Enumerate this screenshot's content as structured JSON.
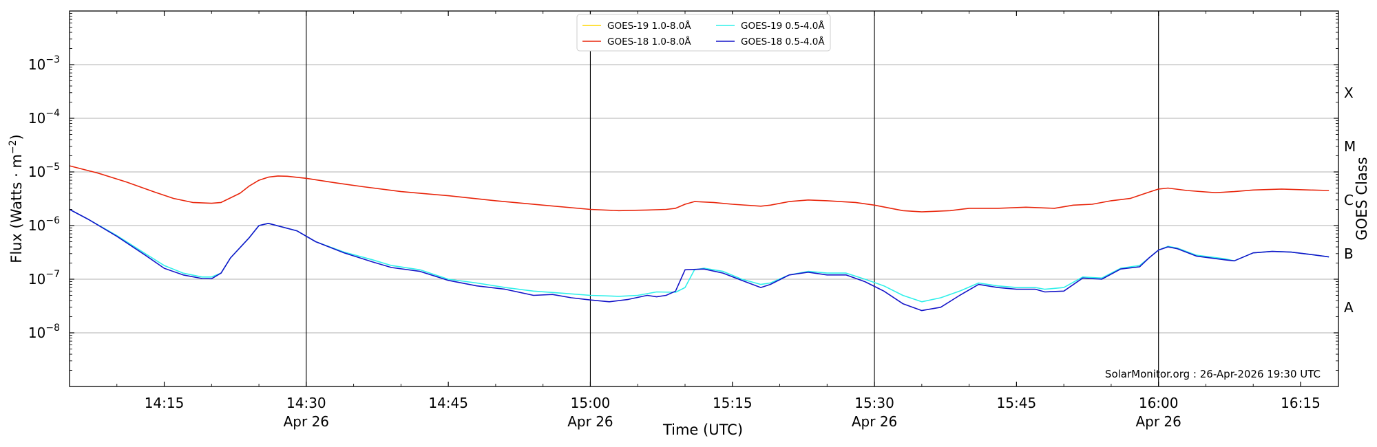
{
  "chart_data": {
    "type": "line",
    "xlabel": "Time (UTC)",
    "ylabel_main": "Flux (Watts · m",
    "ylabel_sup": "−2",
    "ylabel_close": ")",
    "ylabel_right": "GOES Class",
    "credit": "SolarMonitor.org : 26-Apr-2026 19:30 UTC",
    "x_range": [
      "14:05",
      "16:19"
    ],
    "y_range": [
      1e-09,
      0.01
    ],
    "y_scale": "log",
    "grid": "horizontal",
    "legend_position": "top-center",
    "y_ticks": [
      {
        "value": 1e-08,
        "base": "10",
        "exp": "−8"
      },
      {
        "value": 1e-07,
        "base": "10",
        "exp": "−7"
      },
      {
        "value": 1e-06,
        "base": "10",
        "exp": "−6"
      },
      {
        "value": 1e-05,
        "base": "10",
        "exp": "−5"
      },
      {
        "value": 0.0001,
        "base": "10",
        "exp": "−4"
      },
      {
        "value": 0.001,
        "base": "10",
        "exp": "−3"
      }
    ],
    "x_ticks": [
      {
        "time": "14:15",
        "label": "14:15",
        "date": ""
      },
      {
        "time": "14:30",
        "label": "14:30",
        "date": "Apr 26"
      },
      {
        "time": "14:45",
        "label": "14:45",
        "date": ""
      },
      {
        "time": "15:00",
        "label": "15:00",
        "date": "Apr 26"
      },
      {
        "time": "15:15",
        "label": "15:15",
        "date": ""
      },
      {
        "time": "15:30",
        "label": "15:30",
        "date": "Apr 26"
      },
      {
        "time": "15:45",
        "label": "15:45",
        "date": ""
      },
      {
        "time": "16:00",
        "label": "16:00",
        "date": "Apr 26"
      },
      {
        "time": "16:15",
        "label": "16:15",
        "date": ""
      }
    ],
    "day_markers": [
      "14:30",
      "15:00",
      "15:30",
      "16:00"
    ],
    "class_labels": [
      {
        "label": "X",
        "value": 0.0003
      },
      {
        "label": "M",
        "value": 3e-05
      },
      {
        "label": "C",
        "value": 3e-06
      },
      {
        "label": "B",
        "value": 3e-07
      },
      {
        "label": "A",
        "value": 3e-08
      }
    ],
    "series": [
      {
        "name": "GOES-19 1.0-8.0Å",
        "color": "#ffd700",
        "points": []
      },
      {
        "name": "GOES-18 1.0-8.0Å",
        "color": "#e8250b",
        "points": [
          [
            "14:05",
            1.3e-05
          ],
          [
            "14:08",
            9.5e-06
          ],
          [
            "14:11",
            6.5e-06
          ],
          [
            "14:14",
            4.2e-06
          ],
          [
            "14:16",
            3.2e-06
          ],
          [
            "14:18",
            2.7e-06
          ],
          [
            "14:20",
            2.6e-06
          ],
          [
            "14:21",
            2.7e-06
          ],
          [
            "14:23",
            4e-06
          ],
          [
            "14:24",
            5.5e-06
          ],
          [
            "14:25",
            7e-06
          ],
          [
            "14:26",
            8e-06
          ],
          [
            "14:27",
            8.4e-06
          ],
          [
            "14:28",
            8.3e-06
          ],
          [
            "14:30",
            7.6e-06
          ],
          [
            "14:33",
            6.3e-06
          ],
          [
            "14:36",
            5.3e-06
          ],
          [
            "14:40",
            4.3e-06
          ],
          [
            "14:45",
            3.6e-06
          ],
          [
            "14:50",
            2.9e-06
          ],
          [
            "14:55",
            2.4e-06
          ],
          [
            "15:00",
            2e-06
          ],
          [
            "15:03",
            1.9e-06
          ],
          [
            "15:06",
            1.95e-06
          ],
          [
            "15:08",
            2e-06
          ],
          [
            "15:09",
            2.1e-06
          ],
          [
            "15:10",
            2.5e-06
          ],
          [
            "15:11",
            2.8e-06
          ],
          [
            "15:13",
            2.7e-06
          ],
          [
            "15:15",
            2.5e-06
          ],
          [
            "15:18",
            2.3e-06
          ],
          [
            "15:19",
            2.4e-06
          ],
          [
            "15:21",
            2.8e-06
          ],
          [
            "15:23",
            3e-06
          ],
          [
            "15:25",
            2.9e-06
          ],
          [
            "15:28",
            2.7e-06
          ],
          [
            "15:30",
            2.4e-06
          ],
          [
            "15:33",
            1.9e-06
          ],
          [
            "15:35",
            1.8e-06
          ],
          [
            "15:38",
            1.9e-06
          ],
          [
            "15:40",
            2.1e-06
          ],
          [
            "15:43",
            2.1e-06
          ],
          [
            "15:46",
            2.2e-06
          ],
          [
            "15:49",
            2.1e-06
          ],
          [
            "15:51",
            2.4e-06
          ],
          [
            "15:53",
            2.5e-06
          ],
          [
            "15:55",
            2.9e-06
          ],
          [
            "15:57",
            3.2e-06
          ],
          [
            "15:59",
            4.2e-06
          ],
          [
            "16:00",
            4.8e-06
          ],
          [
            "16:01",
            5e-06
          ],
          [
            "16:03",
            4.5e-06
          ],
          [
            "16:06",
            4.1e-06
          ],
          [
            "16:08",
            4.3e-06
          ],
          [
            "16:10",
            4.6e-06
          ],
          [
            "16:13",
            4.8e-06
          ],
          [
            "16:16",
            4.6e-06
          ],
          [
            "16:18",
            4.5e-06
          ]
        ]
      },
      {
        "name": "GOES-19 0.5-4.0Å",
        "color": "#2ff0ea",
        "points": [
          [
            "14:05",
            2e-06
          ],
          [
            "14:07",
            1.3e-06
          ],
          [
            "14:10",
            6.5e-07
          ],
          [
            "14:13",
            3e-07
          ],
          [
            "14:15",
            1.8e-07
          ],
          [
            "14:17",
            1.3e-07
          ],
          [
            "14:19",
            1.1e-07
          ],
          [
            "14:20",
            1.1e-07
          ],
          [
            "14:21",
            1.3e-07
          ],
          [
            "14:22",
            2.5e-07
          ],
          [
            "14:24",
            6e-07
          ],
          [
            "14:25",
            1e-06
          ],
          [
            "14:26",
            1.1e-06
          ],
          [
            "14:29",
            8e-07
          ],
          [
            "14:31",
            5e-07
          ],
          [
            "14:34",
            3.2e-07
          ],
          [
            "14:37",
            2.3e-07
          ],
          [
            "14:39",
            1.8e-07
          ],
          [
            "14:42",
            1.5e-07
          ],
          [
            "14:45",
            1e-07
          ],
          [
            "14:48",
            8.5e-08
          ],
          [
            "14:51",
            7e-08
          ],
          [
            "14:54",
            6e-08
          ],
          [
            "14:57",
            5.5e-08
          ],
          [
            "15:00",
            5e-08
          ],
          [
            "15:03",
            4.8e-08
          ],
          [
            "15:05",
            5e-08
          ],
          [
            "15:07",
            5.8e-08
          ],
          [
            "15:09",
            5.7e-08
          ],
          [
            "15:10",
            7e-08
          ],
          [
            "15:11",
            1.5e-07
          ],
          [
            "15:12",
            1.6e-07
          ],
          [
            "15:14",
            1.4e-07
          ],
          [
            "15:16",
            1e-07
          ],
          [
            "15:18",
            8e-08
          ],
          [
            "15:19",
            8.5e-08
          ],
          [
            "15:21",
            1.2e-07
          ],
          [
            "15:23",
            1.4e-07
          ],
          [
            "15:25",
            1.3e-07
          ],
          [
            "15:27",
            1.3e-07
          ],
          [
            "15:29",
            1e-07
          ],
          [
            "15:31",
            7.5e-08
          ],
          [
            "15:33",
            5e-08
          ],
          [
            "15:35",
            3.8e-08
          ],
          [
            "15:37",
            4.5e-08
          ],
          [
            "15:39",
            6e-08
          ],
          [
            "15:41",
            8.5e-08
          ],
          [
            "15:43",
            7.5e-08
          ],
          [
            "15:45",
            7e-08
          ],
          [
            "15:47",
            7e-08
          ],
          [
            "15:48",
            6.5e-08
          ],
          [
            "15:50",
            7e-08
          ],
          [
            "15:52",
            1.1e-07
          ],
          [
            "15:54",
            1.05e-07
          ],
          [
            "15:56",
            1.6e-07
          ],
          [
            "15:58",
            1.8e-07
          ],
          [
            "15:59",
            2.5e-07
          ],
          [
            "16:00",
            3.5e-07
          ],
          [
            "16:01",
            4.1e-07
          ],
          [
            "16:02",
            3.8e-07
          ],
          [
            "16:04",
            2.8e-07
          ],
          [
            "16:07",
            2.4e-07
          ],
          [
            "16:08",
            2.2e-07
          ],
          [
            "16:10",
            3.1e-07
          ],
          [
            "16:12",
            3.3e-07
          ],
          [
            "16:14",
            3.2e-07
          ],
          [
            "16:16",
            2.9e-07
          ],
          [
            "16:18",
            2.6e-07
          ]
        ]
      },
      {
        "name": "GOES-18 0.5-4.0Å",
        "color": "#1414c8",
        "points": [
          [
            "14:05",
            2e-06
          ],
          [
            "14:07",
            1.3e-06
          ],
          [
            "14:10",
            6.3e-07
          ],
          [
            "14:13",
            2.8e-07
          ],
          [
            "14:15",
            1.6e-07
          ],
          [
            "14:17",
            1.2e-07
          ],
          [
            "14:19",
            1.03e-07
          ],
          [
            "14:20",
            1.02e-07
          ],
          [
            "14:21",
            1.3e-07
          ],
          [
            "14:22",
            2.5e-07
          ],
          [
            "14:24",
            6e-07
          ],
          [
            "14:25",
            1e-06
          ],
          [
            "14:26",
            1.1e-06
          ],
          [
            "14:29",
            8e-07
          ],
          [
            "14:31",
            5e-07
          ],
          [
            "14:34",
            3.1e-07
          ],
          [
            "14:37",
            2.1e-07
          ],
          [
            "14:39",
            1.65e-07
          ],
          [
            "14:42",
            1.4e-07
          ],
          [
            "14:45",
            9.5e-08
          ],
          [
            "14:48",
            7.5e-08
          ],
          [
            "14:51",
            6.5e-08
          ],
          [
            "14:54",
            5e-08
          ],
          [
            "14:56",
            5.2e-08
          ],
          [
            "14:58",
            4.5e-08
          ],
          [
            "15:00",
            4.1e-08
          ],
          [
            "15:02",
            3.8e-08
          ],
          [
            "15:04",
            4.2e-08
          ],
          [
            "15:06",
            5e-08
          ],
          [
            "15:07",
            4.7e-08
          ],
          [
            "15:08",
            5e-08
          ],
          [
            "15:09",
            6e-08
          ],
          [
            "15:10",
            1.5e-07
          ],
          [
            "15:12",
            1.55e-07
          ],
          [
            "15:14",
            1.3e-07
          ],
          [
            "15:16",
            9.5e-08
          ],
          [
            "15:18",
            7e-08
          ],
          [
            "15:19",
            8e-08
          ],
          [
            "15:21",
            1.2e-07
          ],
          [
            "15:23",
            1.35e-07
          ],
          [
            "15:25",
            1.2e-07
          ],
          [
            "15:27",
            1.2e-07
          ],
          [
            "15:29",
            9e-08
          ],
          [
            "15:31",
            6e-08
          ],
          [
            "15:33",
            3.5e-08
          ],
          [
            "15:35",
            2.6e-08
          ],
          [
            "15:37",
            3e-08
          ],
          [
            "15:39",
            5e-08
          ],
          [
            "15:41",
            8e-08
          ],
          [
            "15:43",
            7e-08
          ],
          [
            "15:45",
            6.5e-08
          ],
          [
            "15:47",
            6.5e-08
          ],
          [
            "15:48",
            5.8e-08
          ],
          [
            "15:50",
            6e-08
          ],
          [
            "15:52",
            1.05e-07
          ],
          [
            "15:54",
            1e-07
          ],
          [
            "15:56",
            1.55e-07
          ],
          [
            "15:58",
            1.7e-07
          ],
          [
            "15:59",
            2.5e-07
          ],
          [
            "16:00",
            3.5e-07
          ],
          [
            "16:01",
            4e-07
          ],
          [
            "16:02",
            3.7e-07
          ],
          [
            "16:04",
            2.7e-07
          ],
          [
            "16:07",
            2.3e-07
          ],
          [
            "16:08",
            2.2e-07
          ],
          [
            "16:10",
            3.1e-07
          ],
          [
            "16:12",
            3.3e-07
          ],
          [
            "16:14",
            3.2e-07
          ],
          [
            "16:16",
            2.9e-07
          ],
          [
            "16:18",
            2.6e-07
          ]
        ]
      }
    ]
  }
}
